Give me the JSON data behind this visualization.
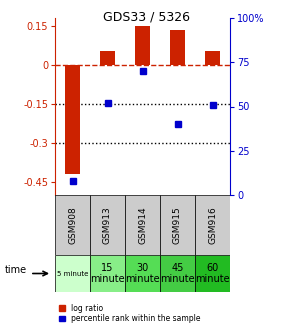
{
  "title": "GDS33 / 5326",
  "samples": [
    "GSM908",
    "GSM913",
    "GSM914",
    "GSM915",
    "GSM916"
  ],
  "log_ratios": [
    -0.42,
    0.055,
    0.148,
    0.132,
    0.055
  ],
  "percentile_ranks": [
    8,
    52,
    70,
    40,
    51
  ],
  "left_ylim": [
    -0.5,
    0.18
  ],
  "right_ylim": [
    0,
    100
  ],
  "left_yticks": [
    0.15,
    0.0,
    -0.15,
    -0.3,
    -0.45
  ],
  "right_yticks": [
    100,
    75,
    50,
    25,
    0
  ],
  "bar_color": "#cc2200",
  "dot_color": "#0000cc",
  "dashed_color": "#cc2200",
  "dotted_color": "#000000",
  "sample_bg": "#cccccc",
  "time_colors": [
    "#ccffcc",
    "#88ee88",
    "#55dd55",
    "#44cc44",
    "#22bb22"
  ],
  "time_labels": [
    "5 minute",
    "15\nminute",
    "30\nminute",
    "45\nminute",
    "60\nminute"
  ],
  "time_small_font": [
    true,
    false,
    false,
    false,
    false
  ],
  "legend_red": "log ratio",
  "legend_blue": "percentile rank within the sample"
}
